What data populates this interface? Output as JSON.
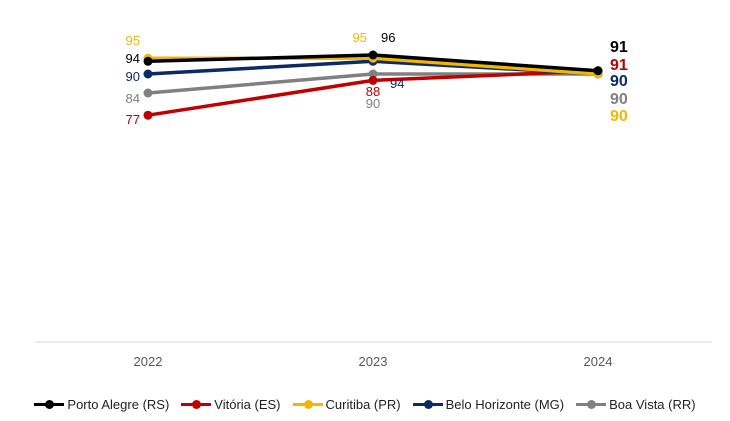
{
  "chart_data": {
    "type": "line",
    "categories": [
      "2022",
      "2023",
      "2024"
    ],
    "ylim": [
      50,
      100
    ],
    "grid": false,
    "legend_position": "bottom",
    "series": [
      {
        "name": "Porto Alegre (RS)",
        "values": [
          94,
          96,
          91
        ],
        "color": "#000000"
      },
      {
        "name": "Vitória (ES)",
        "values": [
          77,
          88,
          91
        ],
        "color": "#c00000"
      },
      {
        "name": "Curitiba (PR)",
        "values": [
          95,
          95,
          90
        ],
        "color": "#f2b705"
      },
      {
        "name": "Belo Horizonte (MG)",
        "values": [
          90,
          94,
          90
        ],
        "color": "#0c2a66"
      },
      {
        "name": "Boa Vista (RR)",
        "values": [
          84,
          90,
          90
        ],
        "color": "#808080"
      }
    ]
  }
}
